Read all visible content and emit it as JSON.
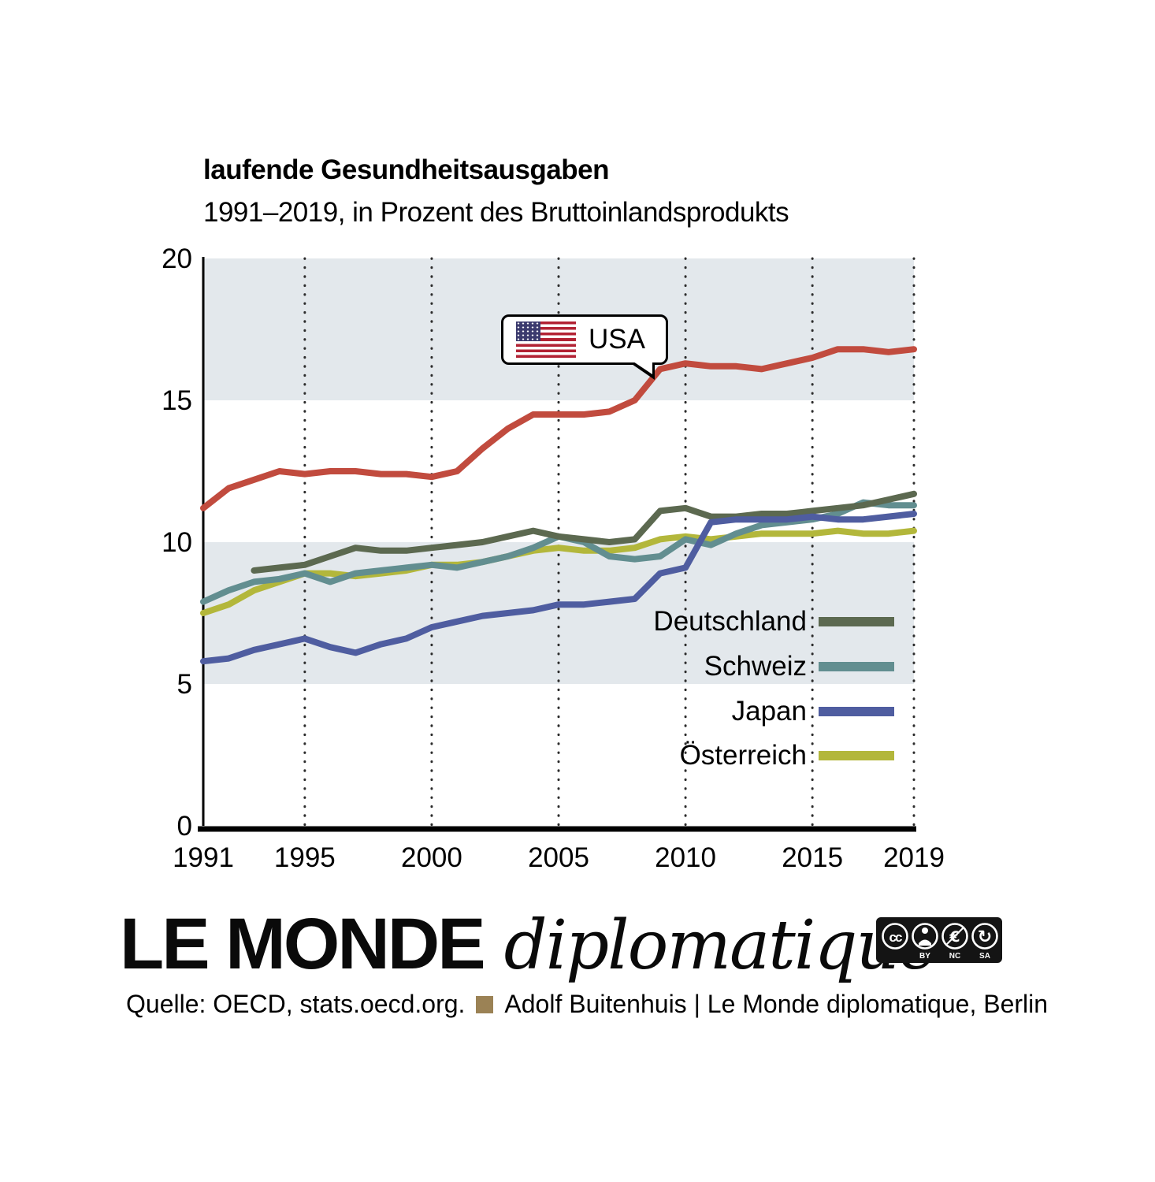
{
  "callout": {
    "label": "USA"
  },
  "chart_data": {
    "type": "line",
    "title": "laufende Gesundheitsausgaben",
    "subtitle": "1991–2019, in Prozent des Bruttoinlandsprodukts",
    "xlim": [
      1991,
      2019
    ],
    "ylim": [
      0,
      20
    ],
    "y_ticks": [
      0,
      5,
      10,
      15,
      20
    ],
    "x_ticks": [
      1991,
      1995,
      2000,
      2005,
      2010,
      2015,
      2019
    ],
    "x_gridlines": [
      1995,
      2000,
      2005,
      2010,
      2015,
      2019
    ],
    "grid": "dotted-vertical",
    "bands": [
      [
        5,
        10
      ],
      [
        15,
        20
      ]
    ],
    "band_color": "#e3e8ec",
    "legend_position": "right-middle",
    "series": [
      {
        "name": "USA",
        "color": "#c14b3e",
        "x_start": 1991,
        "values": [
          11.2,
          11.9,
          12.2,
          12.5,
          12.4,
          12.5,
          12.5,
          12.4,
          12.4,
          12.3,
          12.5,
          13.3,
          14.0,
          14.5,
          14.5,
          14.5,
          14.6,
          15.0,
          16.1,
          16.3,
          16.2,
          16.2,
          16.1,
          16.3,
          16.5,
          16.8,
          16.8,
          16.7,
          16.8
        ]
      },
      {
        "name": "Deutschland",
        "color": "#5c6950",
        "x_start": 1993,
        "values": [
          9.0,
          9.1,
          9.2,
          9.5,
          9.8,
          9.7,
          9.7,
          9.8,
          9.9,
          10.0,
          10.2,
          10.4,
          10.2,
          10.1,
          10.0,
          10.1,
          11.1,
          11.2,
          10.9,
          10.9,
          11.0,
          11.0,
          11.1,
          11.2,
          11.3,
          11.5,
          11.7
        ]
      },
      {
        "name": "Schweiz",
        "color": "#628e90",
        "x_start": 1991,
        "values": [
          7.9,
          8.3,
          8.6,
          8.7,
          8.9,
          8.6,
          8.9,
          9.0,
          9.1,
          9.2,
          9.1,
          9.3,
          9.5,
          9.8,
          10.2,
          10.0,
          9.5,
          9.4,
          9.5,
          10.1,
          9.9,
          10.3,
          10.6,
          10.7,
          10.8,
          11.0,
          11.4,
          11.3,
          11.3
        ]
      },
      {
        "name": "Japan",
        "color": "#4f5da0",
        "x_start": 1991,
        "values": [
          5.8,
          5.9,
          6.2,
          6.4,
          6.6,
          6.3,
          6.1,
          6.4,
          6.6,
          7.0,
          7.2,
          7.4,
          7.5,
          7.6,
          7.8,
          7.8,
          7.9,
          8.0,
          8.9,
          9.1,
          10.7,
          10.8,
          10.8,
          10.8,
          10.9,
          10.8,
          10.8,
          10.9,
          11.0
        ]
      },
      {
        "name": "Österreich",
        "color": "#b3b73b",
        "x_start": 1991,
        "values": [
          7.5,
          7.8,
          8.3,
          8.6,
          8.9,
          8.9,
          8.8,
          8.9,
          9.0,
          9.2,
          9.2,
          9.3,
          9.5,
          9.7,
          9.8,
          9.7,
          9.7,
          9.8,
          10.1,
          10.2,
          10.1,
          10.2,
          10.3,
          10.3,
          10.3,
          10.4,
          10.3,
          10.3,
          10.4
        ]
      }
    ]
  },
  "footer": {
    "logo_main": "LE MONDE",
    "logo_italic": "diplomatique",
    "source": "Quelle: OECD, stats.oecd.org.",
    "credit": "Adolf Buitenhuis | Le Monde diplomatique, Berlin",
    "credit_square_color": "#9b8255",
    "cc_labels": [
      "BY",
      "NC",
      "SA"
    ]
  }
}
